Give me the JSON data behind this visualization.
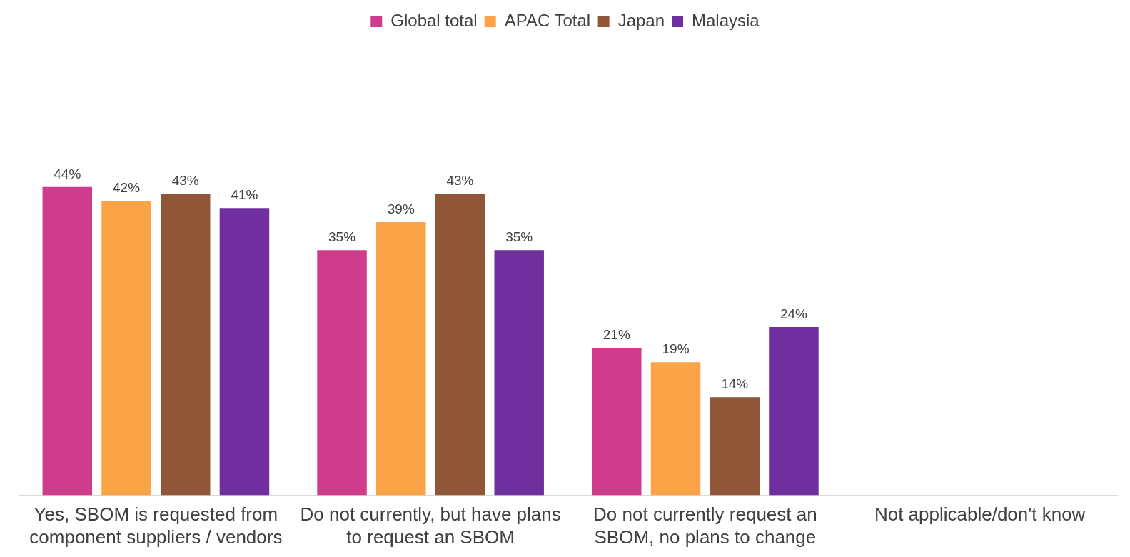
{
  "chart_data": {
    "type": "bar",
    "categories": [
      "Yes, SBOM is requested from component suppliers / vendors",
      "Do not currently, but have plans to request an SBOM",
      "Do not currently request an SBOM, no plans to change",
      "Not applicable/don't know"
    ],
    "series": [
      {
        "name": "Global total",
        "color": "#d03c8c",
        "values": [
          44,
          35,
          21,
          null
        ],
        "value_labels": [
          "44%",
          "35%",
          "21%",
          null
        ]
      },
      {
        "name": "APAC Total",
        "color": "#fba447",
        "values": [
          42,
          39,
          19,
          null
        ],
        "value_labels": [
          "42%",
          "39%",
          "19%",
          null
        ]
      },
      {
        "name": "Japan",
        "color": "#8f5737",
        "values": [
          43,
          43,
          14,
          null
        ],
        "value_labels": [
          "43%",
          "43%",
          "14%",
          null
        ]
      },
      {
        "name": "Malaysia",
        "color": "#6f2f9f",
        "values": [
          41,
          35,
          24,
          null
        ],
        "value_labels": [
          "41%",
          "35%",
          "24%",
          null
        ]
      }
    ],
    "tick_labels": "x",
    "grid": false,
    "legend": "top"
  }
}
